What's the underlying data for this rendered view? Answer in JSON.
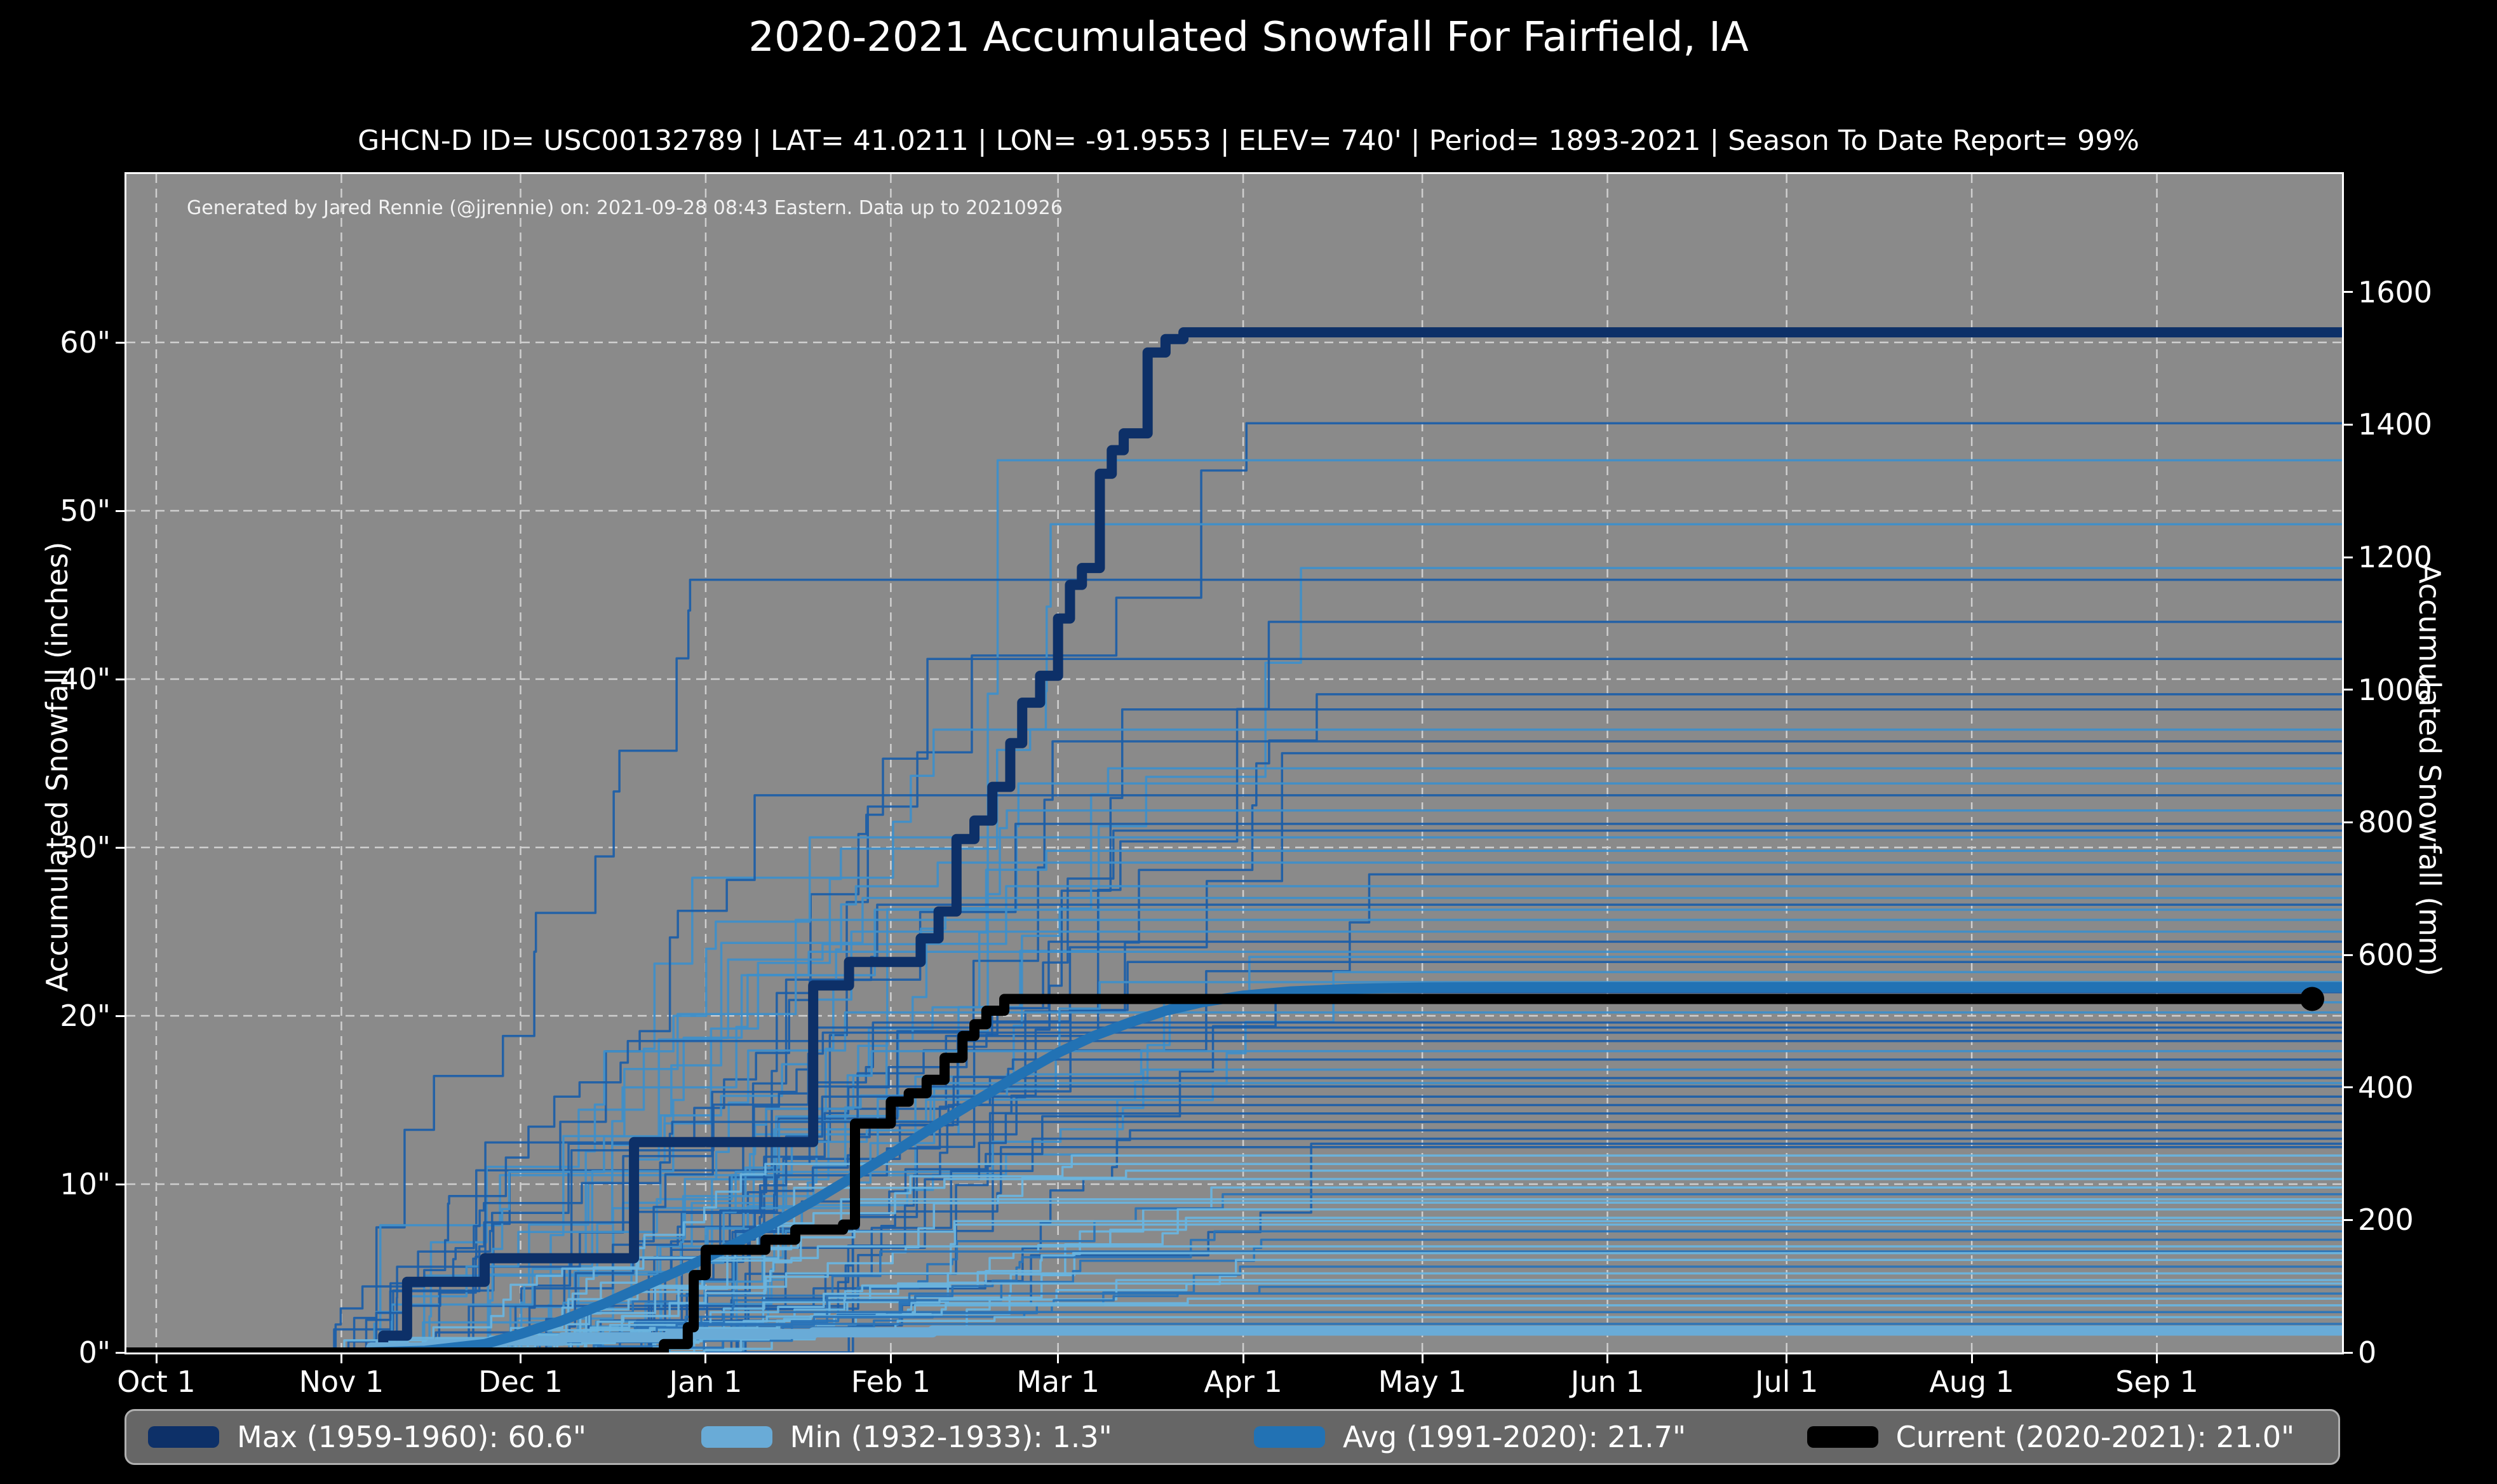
{
  "header": {
    "title": "2020-2021 Accumulated Snowfall For Fairfield, IA",
    "subtitle": "GHCN-D ID= USC00132789 | LAT= 41.0211 | LON= -91.9553 | ELEV= 740' | Period= 1893-2021 | Season To Date Report= 99%"
  },
  "annotation": "Generated by Jared Rennie (@jjrennie) on: 2021-09-28 08:43 Eastern. Data up to 20210926",
  "colors": {
    "page_bg": "#000000",
    "plot_bg": "#8a8a8a",
    "grid": "#cfcfcf",
    "max_line": "#0d3068",
    "min_line": "#69abd7",
    "avg_line": "#2272b4",
    "current_line": "#000000",
    "bg_line_dark": "#1d5fa8",
    "bg_line_mid": "#2a74b8",
    "bg_line_light": "#3f8fc9",
    "bg_line_pale": "#6ab4de",
    "legend_bg": "#666666",
    "legend_border": "#b0b0b0",
    "text": "#ffffff"
  },
  "legend": {
    "items": [
      {
        "label": "Max (1959-1960):   60.6\"",
        "color_key": "max_line"
      },
      {
        "label": "Min (1932-1933):    1.3\"",
        "color_key": "min_line"
      },
      {
        "label": "Avg (1991-2020):   21.7\"",
        "color_key": "avg_line"
      },
      {
        "label": "Current (2020-2021):   21.0\"",
        "color_key": "current_line"
      }
    ]
  },
  "chart_data": {
    "type": "line",
    "title": "2020-2021 Accumulated Snowfall For Fairfield, IA",
    "xlabel": "",
    "ylabel_left": "Accumulated Snowfall (inches)",
    "ylabel_right": "Accumulated Snowfall (mm)",
    "x_axis": {
      "unit": "days_from_oct1",
      "range": [
        -5,
        366
      ],
      "ticks": [
        {
          "label": "Oct 1",
          "day": 0
        },
        {
          "label": "Nov 1",
          "day": 31
        },
        {
          "label": "Dec 1",
          "day": 61
        },
        {
          "label": "Jan 1",
          "day": 92
        },
        {
          "label": "Feb 1",
          "day": 123
        },
        {
          "label": "Mar 1",
          "day": 151
        },
        {
          "label": "Apr 1",
          "day": 182
        },
        {
          "label": "May 1",
          "day": 212
        },
        {
          "label": "Jun 1",
          "day": 243
        },
        {
          "label": "Jul 1",
          "day": 273
        },
        {
          "label": "Aug 1",
          "day": 304
        },
        {
          "label": "Sep 1",
          "day": 335
        }
      ]
    },
    "y_axis_left": {
      "unit": "inches",
      "range": [
        0,
        70
      ],
      "ticks": [
        {
          "label": "0\"",
          "value": 0
        },
        {
          "label": "10\"",
          "value": 10
        },
        {
          "label": "20\"",
          "value": 20
        },
        {
          "label": "30\"",
          "value": 30
        },
        {
          "label": "40\"",
          "value": 40
        },
        {
          "label": "50\"",
          "value": 50
        },
        {
          "label": "60\"",
          "value": 60
        }
      ],
      "grid": true,
      "grid_style": "dashed"
    },
    "y_axis_right": {
      "unit": "mm",
      "mm_per_inch": 25.4,
      "ticks": [
        {
          "label": "0",
          "value": 0
        },
        {
          "label": "200",
          "value": 200
        },
        {
          "label": "400",
          "value": 400
        },
        {
          "label": "600",
          "value": 600
        },
        {
          "label": "800",
          "value": 800
        },
        {
          "label": "1000",
          "value": 1000
        },
        {
          "label": "1200",
          "value": 1200
        },
        {
          "label": "1400",
          "value": 1400
        },
        {
          "label": "1600",
          "value": 1600
        }
      ]
    },
    "series": [
      {
        "name": "Max (1959-1960)",
        "final_in": 60.6,
        "color_key": "max_line",
        "width": 16,
        "style": "step",
        "points": [
          [
            -5,
            0
          ],
          [
            37,
            0
          ],
          [
            38,
            1.0
          ],
          [
            41,
            1.0
          ],
          [
            42,
            4.2
          ],
          [
            54,
            4.2
          ],
          [
            55,
            5.6
          ],
          [
            78,
            5.6
          ],
          [
            80,
            12.5
          ],
          [
            108,
            12.5
          ],
          [
            110,
            21.8
          ],
          [
            115,
            21.8
          ],
          [
            116,
            23.2
          ],
          [
            126,
            23.2
          ],
          [
            128,
            24.6
          ],
          [
            130,
            24.6
          ],
          [
            131,
            26.2
          ],
          [
            133,
            26.2
          ],
          [
            134,
            30.5
          ],
          [
            136,
            30.5
          ],
          [
            137,
            31.6
          ],
          [
            139,
            31.6
          ],
          [
            140,
            33.6
          ],
          [
            142,
            33.6
          ],
          [
            143,
            36.2
          ],
          [
            144,
            36.2
          ],
          [
            145,
            38.6
          ],
          [
            147,
            38.6
          ],
          [
            148,
            40.2
          ],
          [
            150,
            40.2
          ],
          [
            151,
            43.6
          ],
          [
            152,
            43.6
          ],
          [
            153,
            45.6
          ],
          [
            154,
            45.6
          ],
          [
            155,
            46.6
          ],
          [
            157,
            46.6
          ],
          [
            158,
            52.2
          ],
          [
            159,
            52.2
          ],
          [
            160,
            53.6
          ],
          [
            161,
            53.6
          ],
          [
            162,
            54.6
          ],
          [
            165,
            54.6
          ],
          [
            166,
            59.4
          ],
          [
            168,
            59.4
          ],
          [
            169,
            60.2
          ],
          [
            171,
            60.2
          ],
          [
            172,
            60.6
          ],
          [
            366,
            60.6
          ]
        ]
      },
      {
        "name": "Min (1932-1933)",
        "final_in": 1.3,
        "color_key": "min_line",
        "width": 16,
        "style": "step",
        "points": [
          [
            -5,
            0
          ],
          [
            34,
            0
          ],
          [
            36,
            0.3
          ],
          [
            44,
            0.3
          ],
          [
            46,
            0.5
          ],
          [
            56,
            0.5
          ],
          [
            58,
            0.7
          ],
          [
            66,
            0.7
          ],
          [
            68,
            0.9
          ],
          [
            84,
            0.9
          ],
          [
            86,
            1.1
          ],
          [
            108,
            1.1
          ],
          [
            110,
            1.2
          ],
          [
            128,
            1.2
          ],
          [
            130,
            1.3
          ],
          [
            366,
            1.3
          ]
        ]
      },
      {
        "name": "Avg (1991-2020)",
        "final_in": 21.7,
        "color_key": "avg_line",
        "width": 16,
        "style": "smooth",
        "points": [
          [
            35,
            0
          ],
          [
            45,
            0.1
          ],
          [
            55,
            0.5
          ],
          [
            61,
            1.1
          ],
          [
            68,
            1.9
          ],
          [
            75,
            2.9
          ],
          [
            82,
            4.0
          ],
          [
            89,
            5.1
          ],
          [
            96,
            6.3
          ],
          [
            103,
            7.6
          ],
          [
            110,
            9.0
          ],
          [
            117,
            10.5
          ],
          [
            124,
            12.0
          ],
          [
            131,
            13.6
          ],
          [
            138,
            15.1
          ],
          [
            145,
            16.6
          ],
          [
            151,
            17.8
          ],
          [
            157,
            18.8
          ],
          [
            163,
            19.6
          ],
          [
            169,
            20.3
          ],
          [
            175,
            20.8
          ],
          [
            182,
            21.2
          ],
          [
            190,
            21.45
          ],
          [
            200,
            21.6
          ],
          [
            212,
            21.68
          ],
          [
            225,
            21.7
          ],
          [
            366,
            21.7
          ]
        ]
      },
      {
        "name": "Current (2020-2021)",
        "final_in": 21.0,
        "color_key": "current_line",
        "width": 16,
        "style": "step",
        "end_marker": {
          "day": 361,
          "value": 21.0,
          "radius": 19
        },
        "points": [
          [
            -5,
            0
          ],
          [
            84,
            0
          ],
          [
            85,
            0.5
          ],
          [
            88,
            0.5
          ],
          [
            89,
            1.5
          ],
          [
            90,
            4.6
          ],
          [
            91,
            4.6
          ],
          [
            92,
            6.1
          ],
          [
            101,
            6.1
          ],
          [
            102,
            6.7
          ],
          [
            106,
            6.7
          ],
          [
            107,
            7.3
          ],
          [
            114,
            7.3
          ],
          [
            115,
            7.6
          ],
          [
            116,
            7.6
          ],
          [
            117,
            13.6
          ],
          [
            122,
            13.6
          ],
          [
            123,
            14.9
          ],
          [
            125,
            14.9
          ],
          [
            126,
            15.4
          ],
          [
            128,
            15.4
          ],
          [
            129,
            16.2
          ],
          [
            131,
            16.2
          ],
          [
            132,
            17.5
          ],
          [
            134,
            17.5
          ],
          [
            135,
            18.8
          ],
          [
            136,
            18.8
          ],
          [
            137,
            19.5
          ],
          [
            138,
            19.5
          ],
          [
            139,
            20.3
          ],
          [
            141,
            20.3
          ],
          [
            142,
            21.0
          ],
          [
            361,
            21.0
          ]
        ]
      }
    ],
    "background_seasons": {
      "description": "Thin historical season traces 1893-2021, season-total inches at right edge",
      "line_width": 3.5,
      "finals_in": [
        55.2,
        53.0,
        49.2,
        46.6,
        45.9,
        43.4,
        41.2,
        39.1,
        38.2,
        37.0,
        36.3,
        35.6,
        34.7,
        33.8,
        33.1,
        32.2,
        31.4,
        31.0,
        30.6,
        29.8,
        29.1,
        28.4,
        27.7,
        27.0,
        26.6,
        26.3,
        25.7,
        25.0,
        24.4,
        23.8,
        23.5,
        23.2,
        22.6,
        22.0,
        21.4,
        20.8,
        20.2,
        19.6,
        19.3,
        19.0,
        18.5,
        17.9,
        17.4,
        16.8,
        16.3,
        16.0,
        15.8,
        15.2,
        14.7,
        14.2,
        13.7,
        13.2,
        12.7,
        12.4,
        12.2,
        11.7,
        11.2,
        10.8,
        10.3,
        9.8,
        9.4,
        9.1,
        8.9,
        8.5,
        8.0,
        7.8,
        7.6,
        7.2,
        6.7,
        6.3,
        6.0,
        5.9,
        5.5,
        5.1,
        4.7,
        4.3,
        4.1,
        3.9,
        3.5,
        3.2,
        2.8,
        2.4,
        2.1,
        1.7,
        1.4
      ]
    }
  }
}
